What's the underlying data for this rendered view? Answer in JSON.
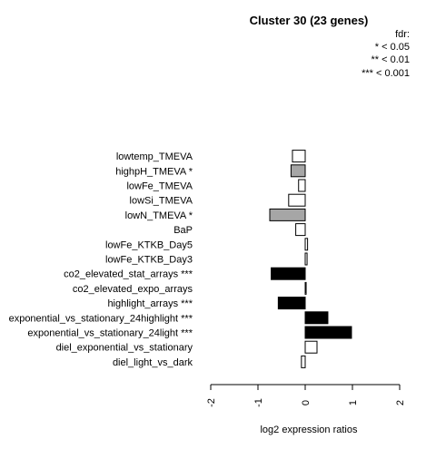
{
  "chart_data": {
    "type": "bar",
    "orientation": "horizontal",
    "title": "Cluster 30 (23 genes)",
    "xlabel": "log2 expression ratios",
    "ylabel": "",
    "xlim": [
      -2,
      2
    ],
    "xticks": [
      "-2",
      "-1",
      "0",
      "1",
      "2"
    ],
    "xtick_values": [
      -2,
      -1,
      0,
      1,
      2
    ],
    "legend": {
      "title": "fdr:",
      "entries": [
        "* < 0.05",
        "** < 0.01",
        "*** < 0.001"
      ]
    },
    "categories": [
      "lowtemp_TMEVA",
      "highpH_TMEVA *",
      "lowFe_TMEVA",
      "lowSi_TMEVA",
      "lowN_TMEVA *",
      "BaP",
      "lowFe_KTKB_Day5",
      "lowFe_KTKB_Day3",
      "co2_elevated_stat_arrays ***",
      "co2_elevated_expo_arrays",
      "highlight_arrays ***",
      "exponential_vs_stationary_24highlight ***",
      "exponential_vs_stationary_24light ***",
      "diel_exponential_vs_stationary",
      "diel_light_vs_dark"
    ],
    "values": [
      -0.27,
      -0.3,
      -0.14,
      -0.35,
      -0.75,
      -0.2,
      0.05,
      0.04,
      -0.72,
      0.02,
      -0.57,
      0.48,
      0.98,
      0.25,
      -0.08
    ],
    "fills": [
      "#ffffff",
      "#a6a6a6",
      "#ffffff",
      "#ffffff",
      "#a6a6a6",
      "#ffffff",
      "#ffffff",
      "#ffffff",
      "#000000",
      "#ffffff",
      "#000000",
      "#000000",
      "#000000",
      "#ffffff",
      "#ffffff"
    ],
    "grid": false
  }
}
